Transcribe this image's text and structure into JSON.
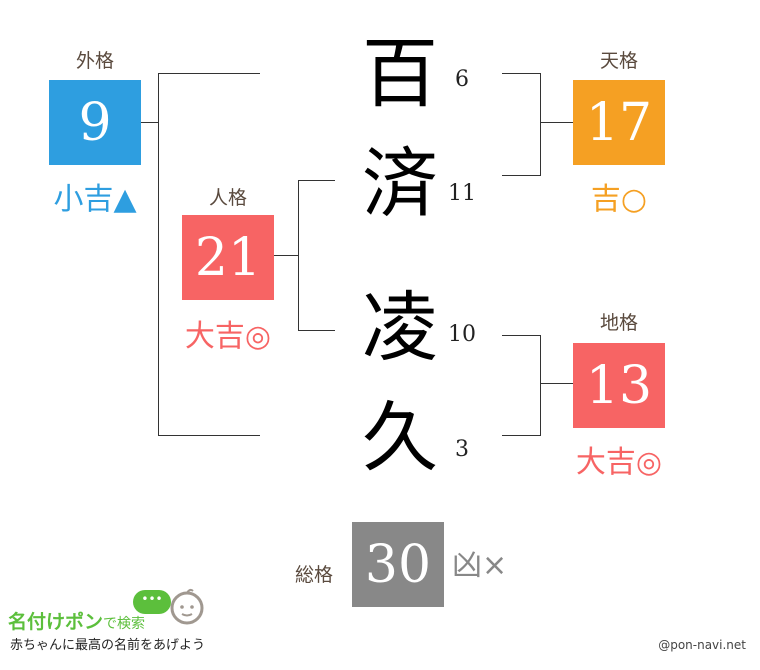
{
  "name_chars": [
    {
      "char": "百",
      "strokes": "6"
    },
    {
      "char": "済",
      "strokes": "11"
    },
    {
      "char": "凌",
      "strokes": "10"
    },
    {
      "char": "久",
      "strokes": "3"
    }
  ],
  "gaikaku": {
    "label": "外格",
    "value": "9",
    "fortune": "小吉▲",
    "color": "#2e9ee0"
  },
  "jinkaku": {
    "label": "人格",
    "value": "21",
    "fortune": "大吉◎",
    "color": "#f76464"
  },
  "tenkaku": {
    "label": "天格",
    "value": "17",
    "fortune": "吉○",
    "color": "#f5a023"
  },
  "chikaku": {
    "label": "地格",
    "value": "13",
    "fortune": "大吉◎",
    "color": "#f76464"
  },
  "soukaku": {
    "label": "総格",
    "value": "30",
    "fortune": "凶×",
    "color": "#888888"
  },
  "footer": {
    "logo_title": "名付けポン",
    "logo_suffix": "で検索",
    "tagline": "赤ちゃんに最高の名前をあげよう",
    "credit": "@pon-navi.net"
  }
}
